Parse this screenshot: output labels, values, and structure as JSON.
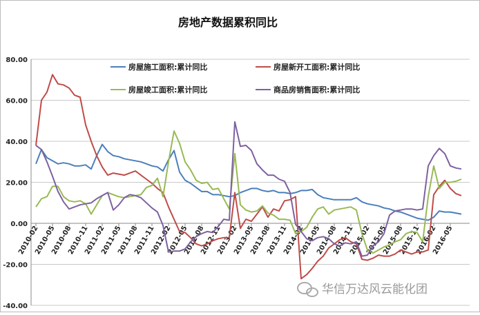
{
  "chart_data": {
    "type": "line",
    "title": "房地产数据累积同比",
    "watermark": "华信万达风云能化团",
    "categories": [
      "2010-02",
      null,
      null,
      "2010-05",
      null,
      null,
      "2010-08",
      null,
      null,
      "2010-11",
      null,
      null,
      "2011-02",
      null,
      null,
      "2011-05",
      null,
      null,
      "2011-08",
      null,
      null,
      "2011-11",
      null,
      null,
      "2012-02",
      null,
      null,
      "2012-05",
      null,
      null,
      "2012-08",
      null,
      null,
      "2012-11",
      null,
      null,
      "2013-02",
      null,
      null,
      "2013-05",
      null,
      null,
      "2013-08",
      null,
      null,
      "2013-11",
      null,
      null,
      "2014-02",
      null,
      null,
      "2014-05",
      null,
      null,
      "2014-08",
      null,
      null,
      "2014-11",
      null,
      null,
      "2015-02",
      null,
      null,
      "2015-05",
      null,
      null,
      "2015-08",
      null,
      null,
      "2015-11",
      null,
      null,
      "2016-02",
      null,
      null,
      "2016-05",
      null,
      null
    ],
    "series": [
      {
        "name": "房屋施工面积:累计同比",
        "color": "#4a7ebb",
        "values": [
          29,
          36,
          32,
          30.5,
          29,
          29.5,
          29,
          28,
          28,
          28.5,
          26.5,
          33,
          38.5,
          35,
          33,
          32.5,
          31.5,
          31,
          30.5,
          30,
          29,
          28,
          27.5,
          25.5,
          31,
          35.5,
          25,
          21,
          19.5,
          17.5,
          15.5,
          15.5,
          14,
          14,
          13.5,
          13,
          13.5,
          15,
          16,
          17,
          17,
          16,
          15.5,
          16,
          15,
          15,
          14.5,
          15,
          16,
          16,
          16.5,
          14,
          12.5,
          12,
          11.5,
          11.5,
          11.5,
          11.5,
          12.5,
          10.5,
          9.5,
          9,
          8.5,
          7.5,
          7,
          6,
          5.5,
          4.5,
          3.5,
          2.5,
          2,
          1.5,
          3,
          6,
          5.5,
          5.5,
          5,
          4.5
        ]
      },
      {
        "name": "房屋新开工面积:累计同比",
        "color": "#be4b48",
        "values": [
          38,
          60,
          64,
          72.5,
          68,
          67.5,
          66,
          62.5,
          61.5,
          48,
          40,
          33,
          27.5,
          23.5,
          24.5,
          24,
          23.5,
          24.5,
          25.5,
          23.5,
          21.5,
          19.5,
          17,
          15,
          8,
          2,
          -4,
          -4.5,
          -7,
          -10,
          -11,
          -10,
          -8.5,
          -7.5,
          -7,
          -7,
          15,
          -2.5,
          2,
          1,
          4.5,
          8,
          3,
          7,
          6,
          11,
          11.5,
          13,
          -27,
          -25,
          -22,
          -18.5,
          -16,
          -12,
          -10,
          -8,
          -7,
          -9,
          -10,
          -17.5,
          -18,
          -17,
          -15.5,
          -16,
          -16,
          -15,
          -13,
          -14,
          -15,
          -14,
          -14,
          -13,
          14,
          18,
          21,
          17,
          14.5,
          13.5
        ]
      },
      {
        "name": "房屋竣工面积:累计同比",
        "color": "#98b954",
        "values": [
          8,
          12,
          13,
          18,
          18,
          13,
          11,
          10.5,
          11,
          9.5,
          4.5,
          9,
          13.5,
          15,
          14,
          13,
          12.5,
          13,
          13.5,
          14,
          17.5,
          18.5,
          22,
          13,
          30,
          45,
          39,
          30,
          26,
          21,
          19.5,
          20,
          16.5,
          17,
          12,
          7,
          34,
          9,
          6.5,
          5.5,
          6,
          8.5,
          5,
          4,
          2,
          2,
          1.5,
          -5,
          -4,
          -2,
          3,
          7,
          8,
          4.5,
          6.5,
          7,
          7.5,
          8,
          6.5,
          -5,
          -13,
          -14.5,
          -13,
          -11.5,
          -10.5,
          -9,
          -8,
          -5,
          -4,
          -4.5,
          -9,
          13,
          28,
          17,
          20,
          20,
          20.5,
          21.5
        ]
      },
      {
        "name": "商品房销售面积:累计同比",
        "color": "#7d60a0",
        "values": [
          38,
          36,
          30,
          23,
          15.5,
          10.5,
          7,
          8,
          9,
          9.5,
          10,
          12,
          13.5,
          15,
          6.5,
          9,
          12.5,
          14,
          13.5,
          12.5,
          10,
          7.5,
          5.5,
          -1,
          -14,
          -13.5,
          -13.5,
          -12.5,
          -9,
          -6.5,
          -5,
          -4,
          -4.5,
          -1.5,
          2,
          1.5,
          49.5,
          37.5,
          38,
          35.5,
          29,
          26,
          23.5,
          23.5,
          21.5,
          20.5,
          15,
          -0.5,
          -4,
          -7.5,
          -8.5,
          -7,
          -6.5,
          -7.5,
          -10,
          -11,
          -9.5,
          -10,
          -9,
          -16,
          -15.5,
          -11,
          -9,
          -5,
          4,
          6,
          6.5,
          7,
          7,
          6.5,
          7,
          28,
          33,
          36.5,
          34,
          28,
          27,
          26.5
        ]
      }
    ],
    "ylim": [
      -40,
      80
    ],
    "yticks": [
      {
        "value": -40,
        "label": "-40.00"
      },
      {
        "value": -20,
        "label": "-20.00"
      },
      {
        "value": 0,
        "label": "0.00"
      },
      {
        "value": 20,
        "label": "20.00"
      },
      {
        "value": 40,
        "label": "40.00"
      },
      {
        "value": 60,
        "label": "60.00"
      },
      {
        "value": 80,
        "label": "80.00"
      }
    ],
    "grid": true
  }
}
